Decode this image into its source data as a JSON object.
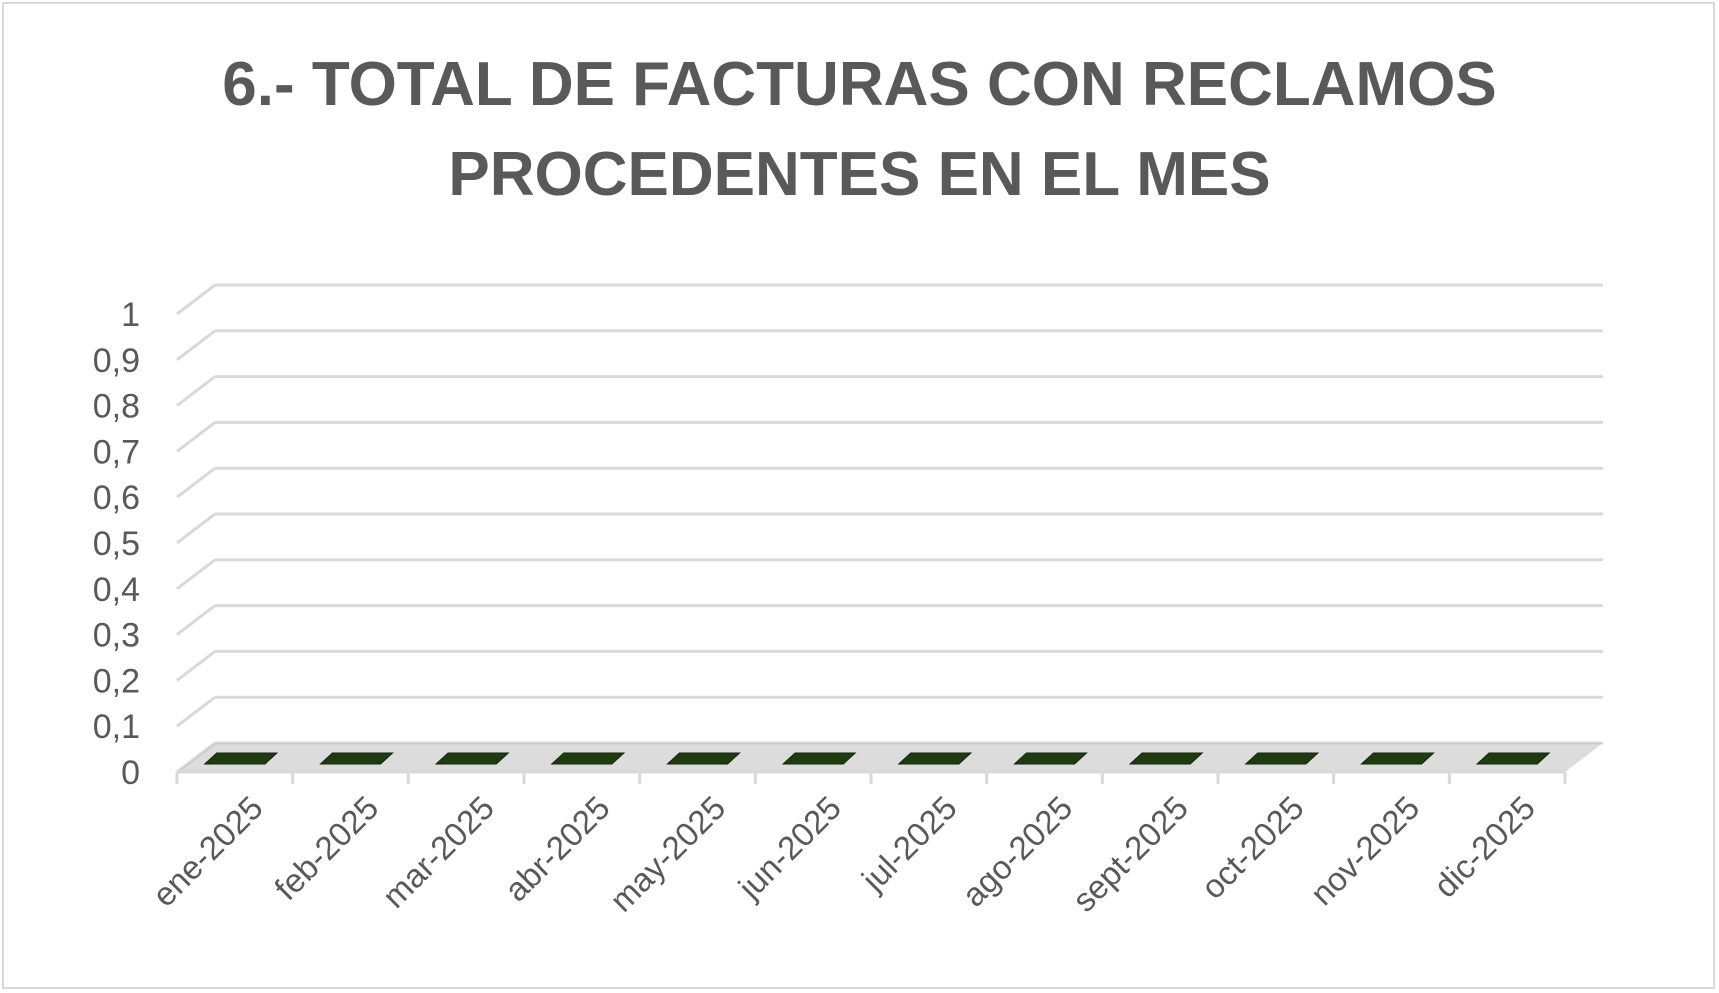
{
  "chart_data": {
    "type": "bar",
    "title_lines": [
      "6.- TOTAL DE FACTURAS CON RECLAMOS",
      "PROCEDENTES EN EL MES"
    ],
    "categories": [
      "ene-2025",
      "feb-2025",
      "mar-2025",
      "abr-2025",
      "may-2025",
      "jun-2025",
      "jul-2025",
      "ago-2025",
      "sept-2025",
      "oct-2025",
      "nov-2025",
      "dic-2025"
    ],
    "values": [
      0,
      0,
      0,
      0,
      0,
      0,
      0,
      0,
      0,
      0,
      0,
      0
    ],
    "ylim": [
      0,
      1
    ],
    "yticks": [
      "0",
      "0,1",
      "0,2",
      "0,3",
      "0,4",
      "0,5",
      "0,6",
      "0,7",
      "0,8",
      "0,9",
      "1"
    ],
    "grid": true,
    "bar_color": "#375623",
    "bar_top_color": "#1e3d0f",
    "grid_color": "#d9d9d9",
    "text_color": "#595959"
  }
}
